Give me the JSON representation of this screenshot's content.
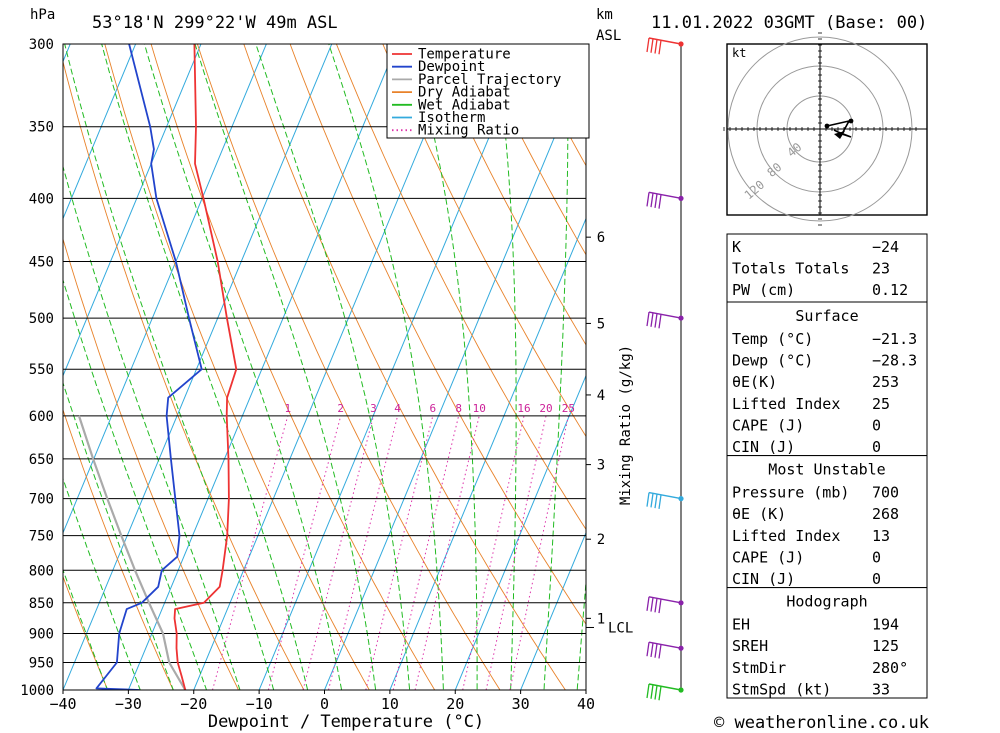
{
  "header": {
    "pressure_unit": "hPa",
    "location": "53°18'N  299°22'W  49m  ASL",
    "height_unit_line1": "km",
    "height_unit_line2": "ASL",
    "datetime": "11.01.2022  03GMT  (Base: 00)"
  },
  "footer": {
    "xlabel": "Dewpoint / Temperature (°C)",
    "mixing_ratio_label": "Mixing Ratio (g/kg)",
    "copyright": "© weatheronline.co.uk"
  },
  "legend": {
    "items": [
      {
        "label": "Temperature",
        "color": "#ee3333",
        "style": "solid"
      },
      {
        "label": "Dewpoint",
        "color": "#2244cc",
        "style": "solid"
      },
      {
        "label": "Parcel Trajectory",
        "color": "#aaaaaa",
        "style": "solid"
      },
      {
        "label": "Dry Adiabat",
        "color": "#e8822a",
        "style": "solid"
      },
      {
        "label": "Wet Adiabat",
        "color": "#22bb22",
        "style": "solid"
      },
      {
        "label": "Isotherm",
        "color": "#33aadd",
        "style": "solid"
      },
      {
        "label": "Mixing Ratio",
        "color": "#dd33aa",
        "style": "dotted"
      }
    ]
  },
  "chart_data": {
    "type": "skew-t",
    "xlim": [
      -40,
      40
    ],
    "xticks": [
      "−40",
      "−30",
      "−20",
      "−10",
      "0",
      "10",
      "20",
      "30",
      "40"
    ],
    "pressure_levels": [
      300,
      350,
      400,
      450,
      500,
      550,
      600,
      650,
      700,
      750,
      800,
      850,
      900,
      950,
      1000
    ],
    "height_ticks": [
      {
        "km": "1",
        "p": 875
      },
      {
        "km": "2",
        "p": 755
      },
      {
        "km": "3",
        "p": 657
      },
      {
        "km": "4",
        "p": 577
      },
      {
        "km": "5",
        "p": 505
      },
      {
        "km": "6",
        "p": 430
      }
    ],
    "lcl": {
      "label": "LCL",
      "p": 890
    },
    "mixing_ratio_labels": [
      "1",
      "2",
      "3",
      "4",
      "6",
      "8",
      "10",
      "16",
      "20",
      "25"
    ],
    "mixing_ratio_values": [
      1,
      2,
      3,
      4,
      6,
      8,
      10,
      16,
      20,
      25
    ],
    "mixing_ratio_label_pressure": 600,
    "temperature": [
      {
        "p": 1000,
        "t": -21.3
      },
      {
        "p": 975,
        "t": -22.7
      },
      {
        "p": 950,
        "t": -24.2
      },
      {
        "p": 925,
        "t": -25.3
      },
      {
        "p": 900,
        "t": -26.2
      },
      {
        "p": 875,
        "t": -27.5
      },
      {
        "p": 860,
        "t": -28.0
      },
      {
        "p": 850,
        "t": -24.0
      },
      {
        "p": 825,
        "t": -22.6
      },
      {
        "p": 800,
        "t": -23.2
      },
      {
        "p": 750,
        "t": -24.7
      },
      {
        "p": 700,
        "t": -26.8
      },
      {
        "p": 650,
        "t": -29.4
      },
      {
        "p": 600,
        "t": -32.4
      },
      {
        "p": 580,
        "t": -33.5
      },
      {
        "p": 550,
        "t": -33.9
      },
      {
        "p": 500,
        "t": -38.6
      },
      {
        "p": 450,
        "t": -43.6
      },
      {
        "p": 400,
        "t": -49.8
      },
      {
        "p": 375,
        "t": -53.3
      },
      {
        "p": 350,
        "t": -55.5
      },
      {
        "p": 300,
        "t": -61.0
      }
    ],
    "dewpoint": [
      {
        "p": 1000,
        "t": -28.3
      },
      {
        "p": 997,
        "t": -35.0
      },
      {
        "p": 950,
        "t": -33.5
      },
      {
        "p": 900,
        "t": -35.0
      },
      {
        "p": 860,
        "t": -35.4
      },
      {
        "p": 850,
        "t": -33.5
      },
      {
        "p": 825,
        "t": -32.0
      },
      {
        "p": 800,
        "t": -32.5
      },
      {
        "p": 780,
        "t": -31.0
      },
      {
        "p": 750,
        "t": -32.0
      },
      {
        "p": 700,
        "t": -35.0
      },
      {
        "p": 650,
        "t": -38.2
      },
      {
        "p": 600,
        "t": -41.6
      },
      {
        "p": 580,
        "t": -42.5
      },
      {
        "p": 550,
        "t": -39.2
      },
      {
        "p": 500,
        "t": -44.4
      },
      {
        "p": 450,
        "t": -50.0
      },
      {
        "p": 400,
        "t": -57.0
      },
      {
        "p": 375,
        "t": -60.0
      },
      {
        "p": 365,
        "t": -60.5
      },
      {
        "p": 350,
        "t": -62.5
      },
      {
        "p": 300,
        "t": -71.0
      }
    ],
    "parcel": [
      {
        "p": 1000,
        "t": -21.3
      },
      {
        "p": 950,
        "t": -25.5
      },
      {
        "p": 900,
        "t": -28.3
      },
      {
        "p": 850,
        "t": -32.4
      },
      {
        "p": 800,
        "t": -36.6
      },
      {
        "p": 750,
        "t": -40.9
      },
      {
        "p": 700,
        "t": -45.4
      },
      {
        "p": 650,
        "t": -50.1
      },
      {
        "p": 600,
        "t": -55.0
      }
    ],
    "wind_barbs": [
      {
        "p": 1000,
        "color": "#22bb22"
      },
      {
        "p": 925,
        "color": "#8a22aa"
      },
      {
        "p": 850,
        "color": "#8a22aa"
      },
      {
        "p": 700,
        "color": "#33aadd"
      },
      {
        "p": 500,
        "color": "#8a22aa"
      },
      {
        "p": 400,
        "color": "#8a22aa"
      },
      {
        "p": 300,
        "color": "#ee3333"
      }
    ]
  },
  "hodograph": {
    "unit": "kt",
    "ring_labels": [
      "40",
      "80",
      "120"
    ]
  },
  "indices": {
    "top": [
      {
        "label": "K",
        "value": "−24"
      },
      {
        "label": "Totals Totals",
        "value": "23"
      },
      {
        "label": "PW (cm)",
        "value": "0.12"
      }
    ],
    "surface": {
      "title": "Surface",
      "rows": [
        {
          "label": "Temp (°C)",
          "value": "−21.3"
        },
        {
          "label": "Dewp (°C)",
          "value": "−28.3"
        },
        {
          "label": "θE(K)",
          "value": "253"
        },
        {
          "label": "Lifted Index",
          "value": "25"
        },
        {
          "label": "CAPE (J)",
          "value": "0"
        },
        {
          "label": "CIN (J)",
          "value": "0"
        }
      ]
    },
    "most_unstable": {
      "title": "Most Unstable",
      "rows": [
        {
          "label": "Pressure (mb)",
          "value": "700"
        },
        {
          "label": "θE (K)",
          "value": "268"
        },
        {
          "label": "Lifted Index",
          "value": "13"
        },
        {
          "label": "CAPE (J)",
          "value": "0"
        },
        {
          "label": "CIN (J)",
          "value": "0"
        }
      ]
    },
    "hodograph": {
      "title": "Hodograph",
      "rows": [
        {
          "label": "EH",
          "value": "194"
        },
        {
          "label": "SREH",
          "value": "125"
        },
        {
          "label": "StmDir",
          "value": "280°"
        },
        {
          "label": "StmSpd (kt)",
          "value": "33"
        }
      ]
    }
  }
}
